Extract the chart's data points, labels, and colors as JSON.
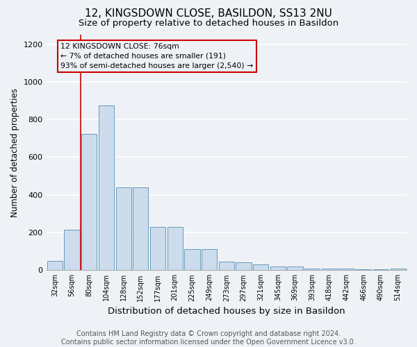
{
  "title": "12, KINGSDOWN CLOSE, BASILDON, SS13 2NU",
  "subtitle": "Size of property relative to detached houses in Basildon",
  "xlabel": "Distribution of detached houses by size in Basildon",
  "ylabel": "Number of detached properties",
  "categories": [
    "32sqm",
    "56sqm",
    "80sqm",
    "104sqm",
    "128sqm",
    "152sqm",
    "177sqm",
    "201sqm",
    "225sqm",
    "249sqm",
    "273sqm",
    "297sqm",
    "321sqm",
    "345sqm",
    "369sqm",
    "393sqm",
    "418sqm",
    "442sqm",
    "466sqm",
    "490sqm",
    "514sqm"
  ],
  "values": [
    50,
    215,
    725,
    875,
    440,
    440,
    230,
    230,
    110,
    110,
    45,
    40,
    30,
    20,
    20,
    10,
    10,
    10,
    5,
    5,
    10
  ],
  "bar_color": "#ccdcec",
  "bar_edge_color": "#6699bb",
  "annotation_line_color": "#cc0000",
  "annotation_box_text": "12 KINGSDOWN CLOSE: 76sqm\n← 7% of detached houses are smaller (191)\n93% of semi-detached houses are larger (2,540) →",
  "red_line_x": 1.5,
  "ylim": [
    0,
    1250
  ],
  "yticks": [
    0,
    200,
    400,
    600,
    800,
    1000,
    1200
  ],
  "footer_text": "Contains HM Land Registry data © Crown copyright and database right 2024.\nContains public sector information licensed under the Open Government Licence v3.0.",
  "bg_color": "#eef2f7",
  "grid_color": "#ffffff",
  "title_fontsize": 11,
  "subtitle_fontsize": 9.5,
  "xlabel_fontsize": 9.5,
  "ylabel_fontsize": 8.5,
  "footer_fontsize": 7,
  "tick_fontsize": 7,
  "ytick_fontsize": 8
}
